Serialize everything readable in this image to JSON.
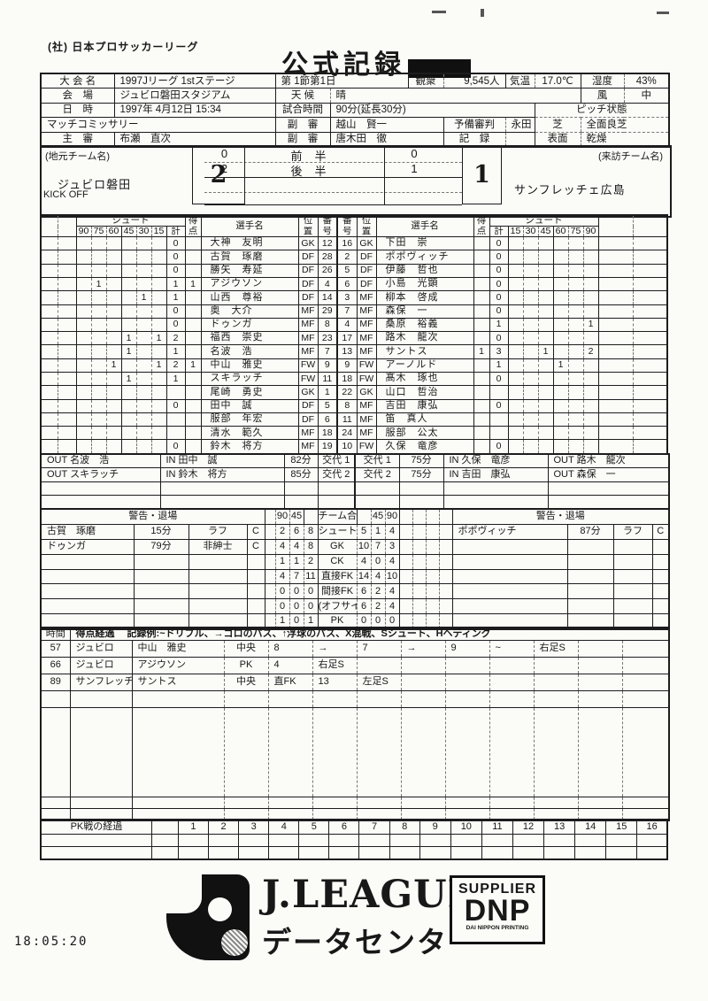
{
  "page": {
    "org": "(社) 日本プロサッカーリーグ",
    "title": "公式記録",
    "timestamp": "18:05:20"
  },
  "info": {
    "competition_label": "大 会 名",
    "competition": "1997Jリーグ 1stステージ",
    "round": "第 1節第1日",
    "attendance_label": "観衆",
    "attendance": "9,545人",
    "temp_label": "気温",
    "temp": "17.0℃",
    "humidity_label": "湿度",
    "humidity": "43%",
    "venue_label": "会　場",
    "venue": "ジュビロ磐田スタジアム",
    "weather_label": "天 候",
    "weather": "晴",
    "wind_label": "風",
    "wind": "中",
    "datetime_label": "日　時",
    "datetime": "1997年 4月12日  15:34",
    "duration_label": "試合時間",
    "duration": "90分(延長30分)",
    "pitch_label": "ピッチ状態",
    "commissioner_label": "マッチコミッサリー",
    "commissioner": "",
    "ar1_label": "副　審",
    "ar1": "越山　賢一",
    "reserve_label": "予備審判",
    "reserve": "永田　亨",
    "turf_label": "芝",
    "turf": "全面良芝",
    "referee_label": "主　審",
    "referee": "布瀬　直次",
    "ar2_label": "副　審",
    "ar2": "唐木田　徹",
    "record_label": "記　録",
    "record": "",
    "surface_label": "表面",
    "surface": "乾燥"
  },
  "score": {
    "home_label": "(地元チーム名)",
    "away_label": "(来訪チーム名)",
    "home_team": "ジュビロ磐田",
    "away_team": "サンフレッチェ広島",
    "kickoff": "KICK OFF",
    "home_total": "2",
    "away_total": "1",
    "periods": [
      {
        "home": "0",
        "label": "前半",
        "away": "0"
      },
      {
        "home": "2",
        "label": "後半",
        "away": "1"
      }
    ]
  },
  "roster": {
    "h": {
      "shoot": "シュート",
      "total": "計",
      "goal_top": "得",
      "goal_bottom": "点",
      "player": "選手名",
      "pos_top": "位",
      "pos_bottom": "置",
      "num_top": "番",
      "num_bottom": "号",
      "left_bins": [
        "90",
        "75",
        "60",
        "45",
        "30",
        "15"
      ],
      "right_bins": [
        "15",
        "30",
        "45",
        "60",
        "75",
        "90"
      ]
    },
    "left": [
      {
        "bins": [
          "",
          "",
          "",
          "",
          "",
          ""
        ],
        "total": "0",
        "goals": "",
        "name": "大神　友明",
        "pos": "GK",
        "num": "12"
      },
      {
        "bins": [
          "",
          "",
          "",
          "",
          "",
          ""
        ],
        "total": "0",
        "goals": "",
        "name": "古賀　琢磨",
        "pos": "DF",
        "num": "28"
      },
      {
        "bins": [
          "",
          "",
          "",
          "",
          "",
          ""
        ],
        "total": "0",
        "goals": "",
        "name": "勝矢　寿延",
        "pos": "DF",
        "num": "26"
      },
      {
        "bins": [
          "",
          "1",
          "",
          "",
          "",
          ""
        ],
        "total": "1",
        "goals": "1",
        "name": "アジウソン",
        "pos": "DF",
        "num": "4"
      },
      {
        "bins": [
          "",
          "",
          "",
          "",
          "1",
          ""
        ],
        "total": "1",
        "goals": "",
        "name": "山西　尊裕",
        "pos": "DF",
        "num": "14"
      },
      {
        "bins": [
          "",
          "",
          "",
          "",
          "",
          ""
        ],
        "total": "0",
        "goals": "",
        "name": "奥　大介",
        "pos": "MF",
        "num": "29"
      },
      {
        "bins": [
          "",
          "",
          "",
          "",
          "",
          ""
        ],
        "total": "0",
        "goals": "",
        "name": "ドゥンガ",
        "pos": "MF",
        "num": "8"
      },
      {
        "bins": [
          "",
          "",
          "",
          "1",
          "",
          "1"
        ],
        "total": "2",
        "goals": "",
        "name": "福西　崇史",
        "pos": "MF",
        "num": "23"
      },
      {
        "bins": [
          "",
          "",
          "",
          "1",
          "",
          ""
        ],
        "total": "1",
        "goals": "",
        "name": "名波　浩",
        "pos": "MF",
        "num": "7"
      },
      {
        "bins": [
          "",
          "",
          "1",
          "",
          "",
          "1"
        ],
        "total": "2",
        "goals": "1",
        "name": "中山　雅史",
        "pos": "FW",
        "num": "9"
      },
      {
        "bins": [
          "",
          "",
          "",
          "1",
          "",
          ""
        ],
        "total": "1",
        "goals": "",
        "name": "スキラッチ",
        "pos": "FW",
        "num": "11"
      },
      {
        "bins": [
          "",
          "",
          "",
          "",
          "",
          ""
        ],
        "total": "",
        "goals": "",
        "name": "尾崎　勇史",
        "pos": "GK",
        "num": "1"
      },
      {
        "bins": [
          "",
          "",
          "",
          "",
          "",
          ""
        ],
        "total": "0",
        "goals": "",
        "name": "田中　誠",
        "pos": "DF",
        "num": "5"
      },
      {
        "bins": [
          "",
          "",
          "",
          "",
          "",
          ""
        ],
        "total": "",
        "goals": "",
        "name": "服部　年宏",
        "pos": "DF",
        "num": "6"
      },
      {
        "bins": [
          "",
          "",
          "",
          "",
          "",
          ""
        ],
        "total": "",
        "goals": "",
        "name": "清水　範久",
        "pos": "MF",
        "num": "18"
      },
      {
        "bins": [
          "",
          "",
          "",
          "",
          "",
          ""
        ],
        "total": "0",
        "goals": "",
        "name": "鈴木　将方",
        "pos": "MF",
        "num": "19"
      }
    ],
    "right": [
      {
        "num": "16",
        "pos": "GK",
        "name": "下田　崇",
        "goals": "",
        "total": "0",
        "bins": [
          "",
          "",
          "",
          "",
          "",
          ""
        ]
      },
      {
        "num": "2",
        "pos": "DF",
        "name": "ポポヴィッチ",
        "goals": "",
        "total": "0",
        "bins": [
          "",
          "",
          "",
          "",
          "",
          ""
        ]
      },
      {
        "num": "5",
        "pos": "DF",
        "name": "伊藤　哲也",
        "goals": "",
        "total": "0",
        "bins": [
          "",
          "",
          "",
          "",
          "",
          ""
        ]
      },
      {
        "num": "6",
        "pos": "DF",
        "name": "小島　光顕",
        "goals": "",
        "total": "0",
        "bins": [
          "",
          "",
          "",
          "",
          "",
          ""
        ]
      },
      {
        "num": "3",
        "pos": "MF",
        "name": "柳本　啓成",
        "goals": "",
        "total": "0",
        "bins": [
          "",
          "",
          "",
          "",
          "",
          ""
        ]
      },
      {
        "num": "7",
        "pos": "MF",
        "name": "森保　一",
        "goals": "",
        "total": "0",
        "bins": [
          "",
          "",
          "",
          "",
          "",
          ""
        ]
      },
      {
        "num": "4",
        "pos": "MF",
        "name": "桑原　裕義",
        "goals": "",
        "total": "1",
        "bins": [
          "",
          "",
          "",
          "",
          "",
          "1"
        ]
      },
      {
        "num": "17",
        "pos": "MF",
        "name": "路木　龍次",
        "goals": "",
        "total": "0",
        "bins": [
          "",
          "",
          "",
          "",
          "",
          ""
        ]
      },
      {
        "num": "13",
        "pos": "MF",
        "name": "サントス",
        "goals": "1",
        "total": "3",
        "bins": [
          "",
          "",
          "1",
          "",
          "",
          "2"
        ]
      },
      {
        "num": "9",
        "pos": "FW",
        "name": "アーノルド",
        "goals": "",
        "total": "1",
        "bins": [
          "",
          "",
          "",
          "1",
          "",
          ""
        ]
      },
      {
        "num": "18",
        "pos": "FW",
        "name": "髙木　琢也",
        "goals": "",
        "total": "0",
        "bins": [
          "",
          "",
          "",
          "",
          "",
          ""
        ]
      },
      {
        "num": "22",
        "pos": "GK",
        "name": "山口　哲治",
        "goals": "",
        "total": "",
        "bins": [
          "",
          "",
          "",
          "",
          "",
          ""
        ]
      },
      {
        "num": "8",
        "pos": "MF",
        "name": "吉田　康弘",
        "goals": "",
        "total": "0",
        "bins": [
          "",
          "",
          "",
          "",
          "",
          ""
        ]
      },
      {
        "num": "11",
        "pos": "MF",
        "name": "笛　真人",
        "goals": "",
        "total": "",
        "bins": [
          "",
          "",
          "",
          "",
          "",
          ""
        ]
      },
      {
        "num": "24",
        "pos": "MF",
        "name": "服部　公太",
        "goals": "",
        "total": "",
        "bins": [
          "",
          "",
          "",
          "",
          "",
          ""
        ]
      },
      {
        "num": "10",
        "pos": "FW",
        "name": "久保　竜彦",
        "goals": "",
        "total": "0",
        "bins": [
          "",
          "",
          "",
          "",
          "",
          ""
        ]
      }
    ]
  },
  "subs": {
    "left": [
      {
        "out": "OUT 名波　浩",
        "in": "IN 田中　誠",
        "time": "82分",
        "label": "交代 1"
      },
      {
        "out": "OUT スキラッチ",
        "in": "IN 鈴木　将方",
        "time": "85分",
        "label": "交代 2"
      },
      {
        "out": "",
        "in": "",
        "time": "",
        "label": ""
      },
      {
        "out": "",
        "in": "",
        "time": "",
        "label": ""
      }
    ],
    "right": [
      {
        "label": "交代 1",
        "time": "75分",
        "in": "IN 久保　竜彦",
        "out": "OUT 路木　龍次"
      },
      {
        "label": "交代 2",
        "time": "75分",
        "in": "IN 吉田　康弘",
        "out": "OUT 森保　一"
      },
      {
        "label": "",
        "time": "",
        "in": "",
        "out": ""
      },
      {
        "label": "",
        "time": "",
        "in": "",
        "out": ""
      }
    ]
  },
  "discipline": {
    "header_left": "警告・退場",
    "header_right": "警告・退場",
    "totals_title": "チーム合計",
    "totals_cols_left": [
      "90",
      "45"
    ],
    "totals_cols_right": [
      "45",
      "90"
    ],
    "left": [
      {
        "name": "古賀　琢磨",
        "time": "15分",
        "reason": "ラフ",
        "card": "C"
      },
      {
        "name": "ドゥンガ",
        "time": "79分",
        "reason": "非紳士",
        "card": "C"
      }
    ],
    "right": [
      {
        "name": "ポポヴィッチ",
        "time": "87分",
        "reason": "ラフ",
        "card": "C"
      }
    ],
    "totals": [
      {
        "left": [
          "2",
          "6",
          "8"
        ],
        "label": "シュート",
        "right": [
          "5",
          "1",
          "4"
        ]
      },
      {
        "left": [
          "4",
          "4",
          "8"
        ],
        "label": "GK",
        "right": [
          "10",
          "7",
          "3"
        ]
      },
      {
        "left": [
          "1",
          "1",
          "2"
        ],
        "label": "CK",
        "right": [
          "4",
          "0",
          "4"
        ]
      },
      {
        "left": [
          "4",
          "7",
          "11"
        ],
        "label": "直接FK",
        "right": [
          "14",
          "4",
          "10"
        ]
      },
      {
        "left": [
          "0",
          "0",
          "0"
        ],
        "label": "間接FK",
        "right": [
          "6",
          "2",
          "4"
        ]
      },
      {
        "left": [
          "0",
          "0",
          "0"
        ],
        "label": "(オフサイド)",
        "right": [
          "6",
          "2",
          "4"
        ]
      },
      {
        "left": [
          "1",
          "0",
          "1"
        ],
        "label": "PK",
        "right": [
          "0",
          "0",
          "0"
        ]
      }
    ]
  },
  "goals": {
    "time_label": "時間",
    "legend": "得点経過　 記録例:~ドリブル、→ゴロのパス、↑浮球のパス、X混戦、Sシュート、Hヘディング",
    "rows": [
      {
        "time": "57",
        "team": "ジュビロ",
        "player": "中山　雅史",
        "how": "中央",
        "cells": [
          "8",
          "→",
          "7",
          "→",
          "9",
          "~",
          "右足S",
          "",
          ""
        ]
      },
      {
        "time": "66",
        "team": "ジュビロ",
        "player": "アジウソン",
        "how": "PK",
        "cells": [
          "4",
          "右足S",
          "",
          "",
          "",
          "",
          "",
          "",
          ""
        ]
      },
      {
        "time": "89",
        "team": "サンフレッチェ",
        "player": "サントス",
        "how": "中央",
        "cells": [
          "直FK",
          "13",
          "左足S",
          "",
          "",
          "",
          "",
          "",
          ""
        ]
      }
    ]
  },
  "pk": {
    "label": "PK戦の経過",
    "cols": [
      "1",
      "2",
      "3",
      "4",
      "5",
      "6",
      "7",
      "8",
      "9",
      "10",
      "11",
      "12",
      "13",
      "14",
      "15",
      "16"
    ]
  },
  "footer": {
    "jleague1": "J.LEAGUE",
    "jleague2": "データセンター",
    "supplier": "SUPPLIER",
    "dnp": "DNP",
    "dnp_sub": "DAI NIPPON PRINTING"
  }
}
